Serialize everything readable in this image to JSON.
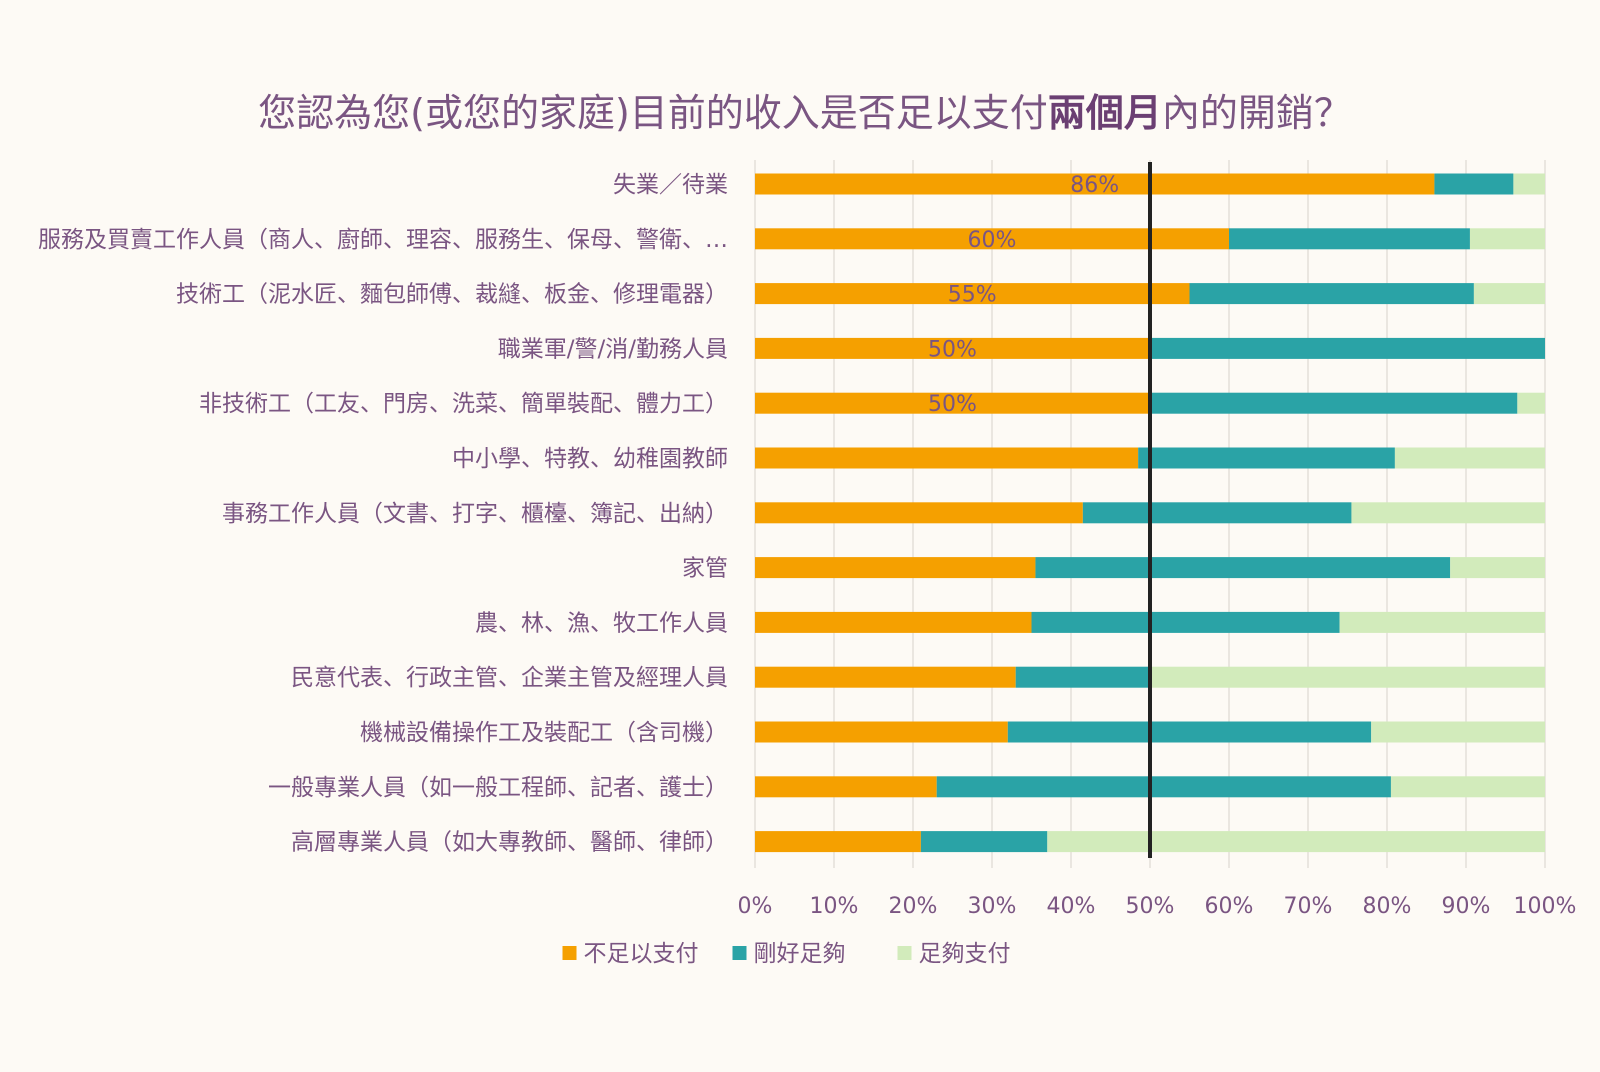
{
  "chart_data": {
    "type": "bar",
    "orientation": "horizontal",
    "stacked": "percent",
    "title_parts": {
      "prefix": "您認為您(或您的家庭)目前的收入是否足以支付",
      "bold": "兩個月",
      "suffix": "內的開銷？"
    },
    "categories": [
      "失業／待業",
      "服務及買賣工作人員（商人、廚師、理容、服務生、保母、警衛、…",
      "技術工（泥水匠、麵包師傅、裁縫、板金、修理電器）",
      "職業軍/警/消/勤務人員",
      "非技術工（工友、門房、洗菜、簡單裝配、體力工）",
      "中小學、特教、幼稚園教師",
      "事務工作人員（文書、打字、櫃檯、簿記、出納）",
      "家管",
      "農、林、漁、牧工作人員",
      "民意代表、行政主管、企業主管及經理人員",
      "機械設備操作工及裝配工（含司機）",
      "一般專業人員（如一般工程師、記者、護士）",
      "高層專業人員（如大專教師、醫師、律師）"
    ],
    "series": [
      {
        "name": "不足以支付",
        "color": "#f5a000",
        "values": [
          86,
          60,
          55,
          50,
          50,
          48.5,
          41.5,
          35.5,
          35,
          33,
          32,
          23,
          21
        ]
      },
      {
        "name": "剛好足夠",
        "color": "#2aa3a6",
        "values": [
          10,
          30.5,
          36,
          50,
          46.5,
          32.5,
          34,
          52.5,
          39,
          17,
          46,
          57.5,
          16
        ]
      },
      {
        "name": "足夠支付",
        "color": "#d2ebbb",
        "values": [
          4,
          9.5,
          9,
          0,
          3.5,
          19,
          24.5,
          12,
          26,
          50,
          22,
          19.5,
          63
        ]
      }
    ],
    "data_labels": [
      {
        "row": 0,
        "text": "86%"
      },
      {
        "row": 1,
        "text": "60%"
      },
      {
        "row": 2,
        "text": "55%"
      },
      {
        "row": 3,
        "text": "50%"
      },
      {
        "row": 4,
        "text": "50%"
      }
    ],
    "xlim": [
      0,
      100
    ],
    "x_ticks": [
      "0%",
      "10%",
      "20%",
      "30%",
      "40%",
      "50%",
      "60%",
      "70%",
      "80%",
      "90%",
      "100%"
    ],
    "reference_line": 50,
    "grid": true,
    "legend_position": "bottom"
  }
}
